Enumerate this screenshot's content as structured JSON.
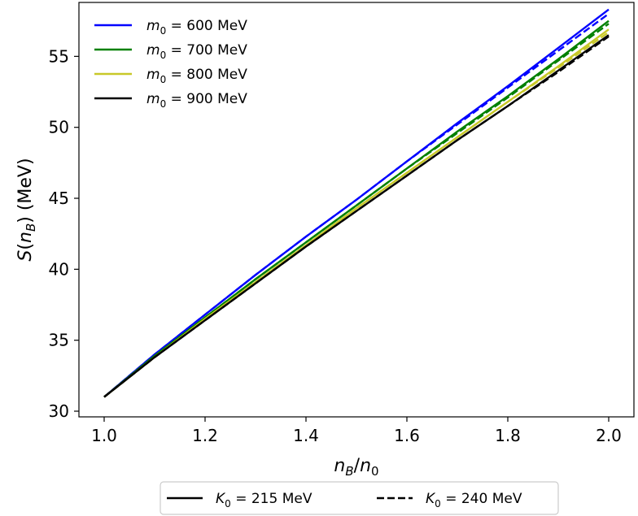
{
  "chart_data": {
    "type": "line",
    "xlabel": "n_B/n_0",
    "ylabel": "S(n_B) (MeV)",
    "xlim": [
      0.95,
      2.05
    ],
    "ylim": [
      29.6,
      58.8
    ],
    "x_ticks": [
      "1.0",
      "1.2",
      "1.4",
      "1.6",
      "1.8",
      "2.0"
    ],
    "y_ticks": [
      "30",
      "35",
      "40",
      "45",
      "50",
      "55"
    ],
    "x": [
      1.0,
      1.1,
      1.2,
      1.3,
      1.4,
      1.5,
      1.6,
      1.7,
      1.8,
      1.9,
      2.0
    ],
    "series": [
      {
        "name": "m0 = 600 MeV",
        "mass": "600 MeV",
        "color": "#0000ff",
        "style": "solid",
        "K0": "215 MeV",
        "values": [
          31.0,
          34.0,
          36.8,
          39.6,
          42.3,
          44.9,
          47.6,
          50.3,
          52.9,
          55.6,
          58.3
        ]
      },
      {
        "name": "m0 = 600 MeV",
        "mass": "600 MeV",
        "color": "#0000ff",
        "style": "dashed",
        "K0": "240 MeV",
        "values": [
          31.0,
          34.0,
          36.8,
          39.6,
          42.3,
          44.9,
          47.6,
          50.2,
          52.8,
          55.4,
          58.0
        ]
      },
      {
        "name": "m0 = 700 MeV",
        "mass": "700 MeV",
        "color": "#008000",
        "style": "solid",
        "K0": "215 MeV",
        "values": [
          31.0,
          33.9,
          36.6,
          39.3,
          41.9,
          44.5,
          47.1,
          49.7,
          52.2,
          54.8,
          57.5
        ]
      },
      {
        "name": "m0 = 700 MeV",
        "mass": "700 MeV",
        "color": "#008000",
        "style": "dashed",
        "K0": "240 MeV",
        "values": [
          31.0,
          33.9,
          36.6,
          39.3,
          41.9,
          44.5,
          47.1,
          49.6,
          52.1,
          54.7,
          57.3
        ]
      },
      {
        "name": "m0 = 800 MeV",
        "mass": "800 MeV",
        "color": "#c8c828",
        "style": "solid",
        "K0": "215 MeV",
        "values": [
          31.0,
          33.8,
          36.5,
          39.1,
          41.7,
          44.3,
          46.8,
          49.3,
          51.8,
          54.3,
          56.9
        ]
      },
      {
        "name": "m0 = 800 MeV",
        "mass": "800 MeV",
        "color": "#c8c828",
        "style": "dashed",
        "K0": "240 MeV",
        "values": [
          31.0,
          33.8,
          36.5,
          39.1,
          41.7,
          44.3,
          46.8,
          49.3,
          51.8,
          54.2,
          56.7
        ]
      },
      {
        "name": "m0 = 900 MeV",
        "mass": "900 MeV",
        "color": "#000000",
        "style": "solid",
        "K0": "215 MeV",
        "values": [
          31.0,
          33.8,
          36.4,
          39.0,
          41.6,
          44.1,
          46.6,
          49.1,
          51.5,
          54.0,
          56.5
        ]
      },
      {
        "name": "m0 = 900 MeV",
        "mass": "900 MeV",
        "color": "#000000",
        "style": "dashed",
        "K0": "240 MeV",
        "values": [
          31.0,
          33.8,
          36.4,
          39.0,
          41.6,
          44.1,
          46.6,
          49.1,
          51.5,
          53.9,
          56.4
        ]
      }
    ],
    "legend_upper": {
      "placement": "top-left",
      "prefix": "m",
      "subscript": "0",
      "entries": [
        {
          "label": "= 600 MeV",
          "color": "#0000ff"
        },
        {
          "label": "= 700 MeV",
          "color": "#008000"
        },
        {
          "label": "= 800 MeV",
          "color": "#c8c828"
        },
        {
          "label": "= 900 MeV",
          "color": "#000000"
        }
      ]
    },
    "legend_lower": {
      "placement": "bottom-center",
      "prefix": "K",
      "subscript": "0",
      "entries": [
        {
          "label": "= 215 MeV",
          "style": "solid"
        },
        {
          "label": "= 240 MeV",
          "style": "dashed"
        }
      ]
    },
    "grid": false
  }
}
